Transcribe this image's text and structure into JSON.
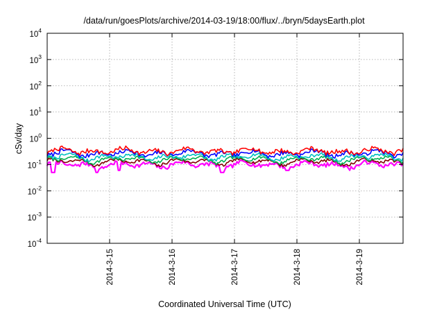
{
  "chart_data": {
    "type": "line",
    "title": "/data/run/goesPlots/archive/2014-03-19/18:00/flux/../bryn/5daysEarth.plot",
    "xlabel": "Coordinated Universal Time (UTC)",
    "ylabel": "cSv/day",
    "yscale": "log",
    "ylim": [
      0.0001,
      10000
    ],
    "xlim": [
      0,
      5.7
    ],
    "yticks": [
      {
        "exp": "-4",
        "value": 0.0001
      },
      {
        "exp": "-3",
        "value": 0.001
      },
      {
        "exp": "-2",
        "value": 0.01
      },
      {
        "exp": "-1",
        "value": 0.1
      },
      {
        "exp": "0",
        "value": 1
      },
      {
        "exp": "1",
        "value": 10
      },
      {
        "exp": "2",
        "value": 100
      },
      {
        "exp": "3",
        "value": 1000
      },
      {
        "exp": "4",
        "value": 10000
      }
    ],
    "tick_base": "10",
    "xticks": [
      {
        "label": "2014-3-15",
        "x": 1
      },
      {
        "label": "2014-3-16",
        "x": 2
      },
      {
        "label": "2014-3-17",
        "x": 3
      },
      {
        "label": "2014-3-18",
        "x": 4
      },
      {
        "label": "2014-3-19",
        "x": 5
      }
    ],
    "grid": true,
    "series": [
      {
        "name": "series-magenta",
        "color": "#ff00ff",
        "base": 0.1,
        "amp": 0.35,
        "dips": [
          [
            0.09,
            0.05
          ],
          [
            0.8,
            0.05
          ],
          [
            1.15,
            0.06
          ],
          [
            2.8,
            0.05
          ],
          [
            3.85,
            0.06
          ],
          [
            4.9,
            0.07
          ]
        ]
      },
      {
        "name": "series-dark-red",
        "color": "#800000",
        "base": 0.13,
        "amp": 0.25,
        "dips": []
      },
      {
        "name": "series-green",
        "color": "#00b050",
        "base": 0.16,
        "amp": 0.25,
        "dips": []
      },
      {
        "name": "series-cyan",
        "color": "#00c0c0",
        "base": 0.2,
        "amp": 0.3,
        "dips": []
      },
      {
        "name": "series-blue",
        "color": "#0000ff",
        "base": 0.27,
        "amp": 0.35,
        "dips": []
      },
      {
        "name": "series-red",
        "color": "#ff0000",
        "base": 0.33,
        "amp": 0.35,
        "dips": []
      }
    ]
  }
}
